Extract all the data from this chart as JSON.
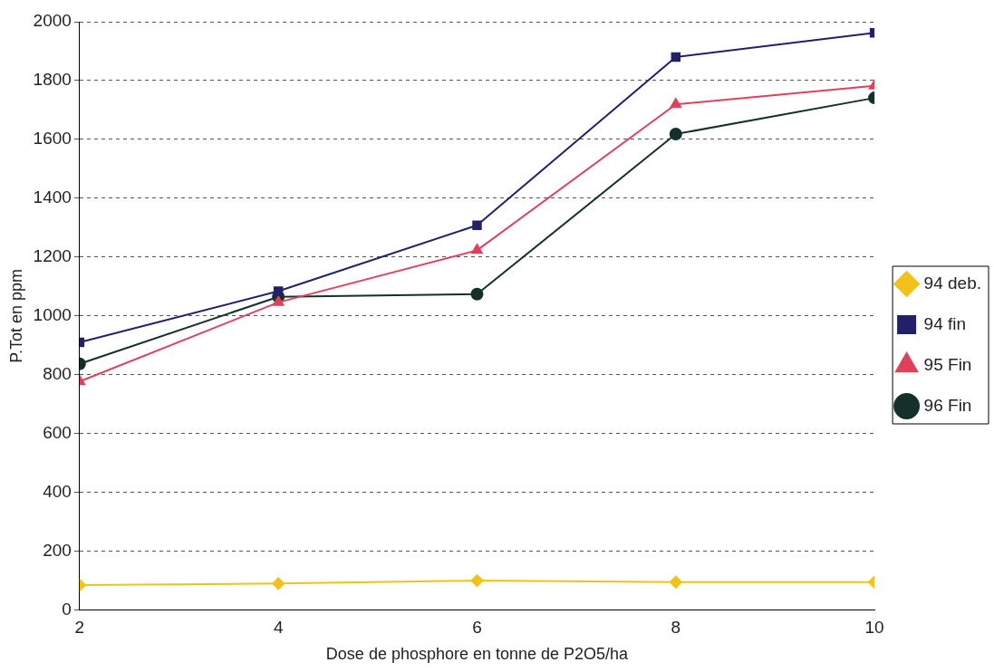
{
  "chart_data": {
    "type": "line",
    "xlabel": "Dose de phosphore en tonne de P2O5/ha",
    "ylabel": "P.Tot en ppm",
    "x": [
      2,
      4,
      6,
      8,
      10
    ],
    "xlim": [
      2,
      10
    ],
    "xticks": [
      2,
      4,
      6,
      8,
      10
    ],
    "ylim": [
      0,
      2000
    ],
    "yticks": [
      0,
      200,
      400,
      600,
      800,
      1000,
      1200,
      1400,
      1600,
      1800,
      2000
    ],
    "grid": "y",
    "legend": "right",
    "line_style": "solid",
    "series": [
      {
        "name": "94 deb.",
        "color": "#f2c21b",
        "marker": "diamond",
        "values": [
          85,
          90,
          100,
          95,
          95
        ]
      },
      {
        "name": "94 fin",
        "color": "#22206a",
        "marker": "square",
        "values": [
          910,
          1084,
          1308,
          1880,
          1962
        ]
      },
      {
        "name": "95 Fin",
        "color": "#e0405a",
        "marker": "triangle",
        "values": [
          777,
          1046,
          1223,
          1719,
          1782
        ]
      },
      {
        "name": "96 Fin",
        "color": "#15302a",
        "marker": "circle",
        "values": [
          837,
          1065,
          1074,
          1618,
          1741
        ]
      }
    ]
  }
}
